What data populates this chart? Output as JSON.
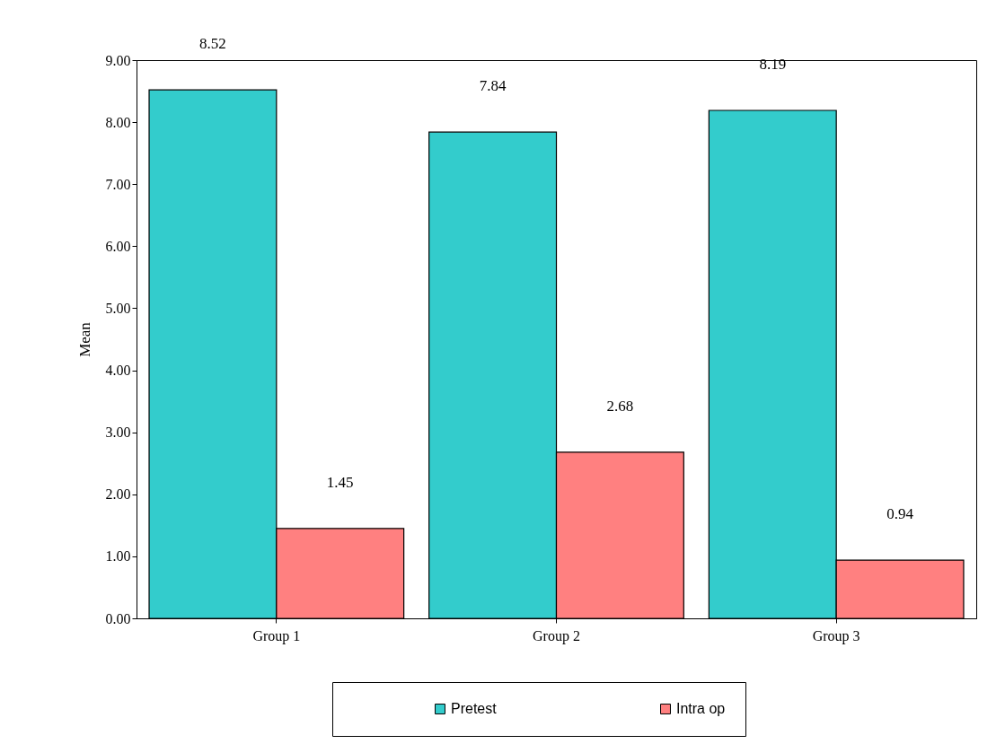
{
  "chart_data": {
    "type": "bar",
    "ylabel": "Mean",
    "categories": [
      "Group 1",
      "Group 2",
      "Group 3"
    ],
    "series": [
      {
        "name": "Pretest",
        "color": "#33cccc",
        "values": [
          8.52,
          7.84,
          8.19
        ]
      },
      {
        "name": "Intra op",
        "color": "#ff8080",
        "values": [
          1.45,
          2.68,
          0.94
        ]
      }
    ],
    "ylim": [
      0,
      9
    ],
    "yticks": [
      {
        "value": 0,
        "label": "0.00"
      },
      {
        "value": 1,
        "label": "1.00"
      },
      {
        "value": 2,
        "label": "2.00"
      },
      {
        "value": 3,
        "label": "3.00"
      },
      {
        "value": 4,
        "label": "4.00"
      },
      {
        "value": 5,
        "label": "5.00"
      },
      {
        "value": 6,
        "label": "6.00"
      },
      {
        "value": 7,
        "label": "7.00"
      },
      {
        "value": 8,
        "label": "8.00"
      },
      {
        "value": 9,
        "label": "9.00"
      }
    ],
    "data_labels": true,
    "legend": "bottom",
    "grid": false
  }
}
